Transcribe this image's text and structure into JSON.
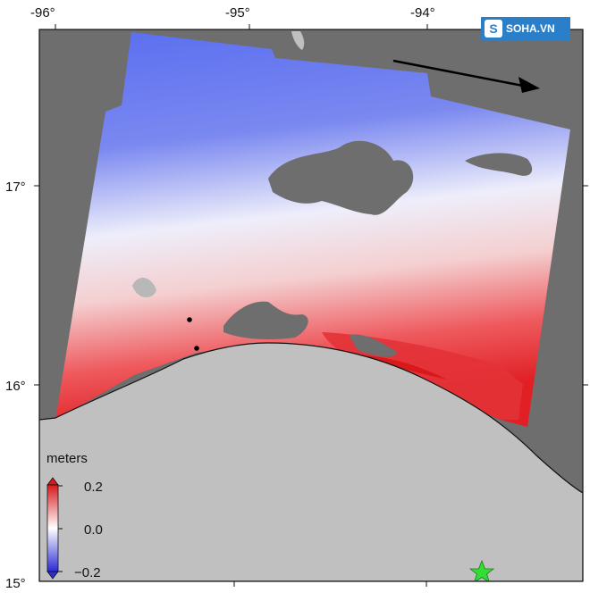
{
  "map": {
    "lon_ticks": [
      "-96°",
      "-95°",
      "-94°"
    ],
    "lat_ticks": [
      "17°",
      "16°",
      "15°"
    ],
    "colorbar": {
      "title": "meters",
      "max_label": "0.2",
      "mid_label": "0.0",
      "min_label": "−0.2",
      "color_max": "#d7191c",
      "color_mid": "#ffffff",
      "color_min": "#2b2bd6"
    },
    "land_color": "#c0c0c0",
    "nodata_color": "#6e6e6e",
    "epicenter_color": "#33dd33"
  },
  "watermark": {
    "badge": "S",
    "text": "SOHA.VN"
  }
}
